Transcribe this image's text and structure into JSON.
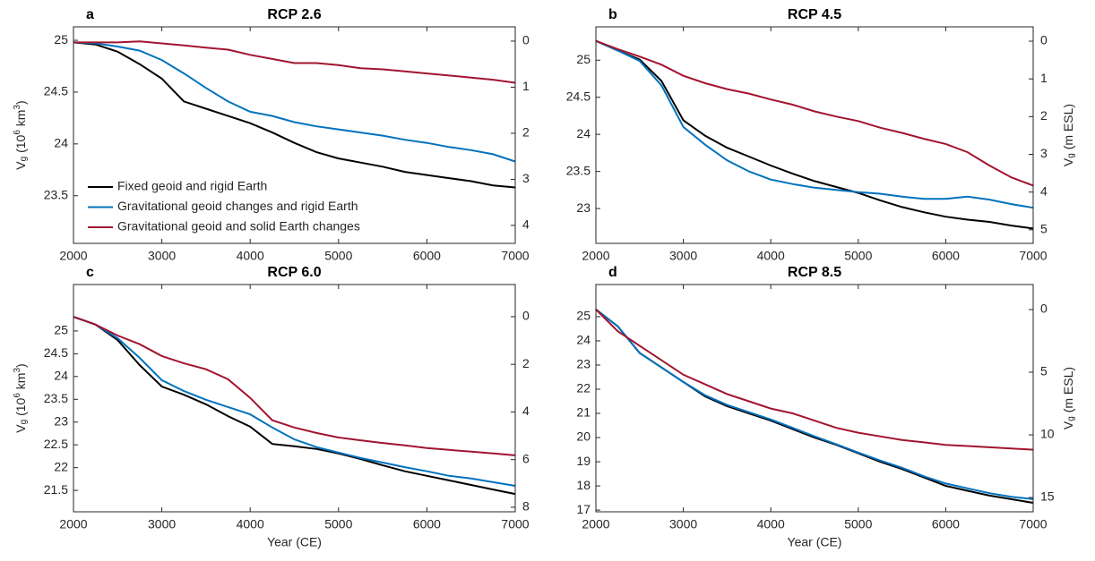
{
  "chart_data": [
    {
      "type": "line",
      "panel_label": "a",
      "title": "RCP 2.6",
      "x": [
        2000,
        2250,
        2500,
        2750,
        3000,
        3250,
        3500,
        3750,
        4000,
        4250,
        4500,
        4750,
        5000,
        5250,
        5500,
        5750,
        6000,
        6250,
        6500,
        6750,
        7000
      ],
      "xlim": [
        2000,
        7000
      ],
      "xticks": [
        2000,
        3000,
        4000,
        5000,
        6000,
        7000
      ],
      "ylim": [
        23.04,
        25.13
      ],
      "yticks": [
        23.5,
        24,
        24.5,
        25
      ],
      "y2lim": [
        4.39,
        -0.31
      ],
      "y2ticks": [
        0,
        1,
        2,
        3,
        4
      ],
      "ylabel": [
        {
          "text": "V",
          "script": "base"
        },
        {
          "text": "g",
          "script": "sub"
        },
        {
          "text": " (10",
          "script": "base"
        },
        {
          "text": "6",
          "script": "sup"
        },
        {
          "text": " km",
          "script": "base"
        },
        {
          "text": "3",
          "script": "sup"
        },
        {
          "text": ")",
          "script": "base"
        }
      ],
      "legend": "lower left",
      "series": [
        {
          "name": "Fixed geoid and rigid Earth",
          "color": "#000000",
          "values": [
            24.98,
            24.96,
            24.89,
            24.77,
            24.63,
            24.41,
            24.34,
            24.27,
            24.2,
            24.11,
            24.01,
            23.92,
            23.86,
            23.82,
            23.78,
            23.73,
            23.7,
            23.67,
            23.64,
            23.6,
            23.58
          ]
        },
        {
          "name": "Gravitational geoid changes and rigid Earth",
          "color": "#0072bd",
          "values": [
            24.98,
            24.97,
            24.94,
            24.9,
            24.81,
            24.68,
            24.54,
            24.41,
            24.31,
            24.27,
            24.21,
            24.17,
            24.14,
            24.11,
            24.08,
            24.04,
            24.01,
            23.97,
            23.94,
            23.9,
            23.83
          ]
        },
        {
          "name": "Gravitational geoid and solid Earth changes",
          "color": "#a2142f",
          "values": [
            24.98,
            24.98,
            24.98,
            24.99,
            24.97,
            24.95,
            24.93,
            24.91,
            24.86,
            24.82,
            24.78,
            24.78,
            24.76,
            24.73,
            24.72,
            24.7,
            24.68,
            24.66,
            24.64,
            24.62,
            24.59
          ]
        }
      ]
    },
    {
      "type": "line",
      "panel_label": "b",
      "title": "RCP 4.5",
      "x": [
        2000,
        2250,
        2500,
        2750,
        3000,
        3250,
        3500,
        3750,
        4000,
        4250,
        4500,
        4750,
        5000,
        5250,
        5500,
        5750,
        6000,
        6250,
        6500,
        6750,
        7000
      ],
      "xlim": [
        2000,
        7000
      ],
      "xticks": [
        2000,
        3000,
        4000,
        5000,
        6000,
        7000
      ],
      "ylim": [
        22.53,
        25.45
      ],
      "yticks": [
        23,
        23.5,
        24,
        24.5,
        25
      ],
      "y2lim": [
        5.36,
        -0.38
      ],
      "y2ticks": [
        0,
        1,
        2,
        3,
        4,
        5
      ],
      "y2label": [
        {
          "text": "V",
          "script": "base"
        },
        {
          "text": "g",
          "script": "sub"
        },
        {
          "text": " (m ESL)",
          "script": "base"
        }
      ],
      "series": [
        {
          "color": "#000000",
          "values": [
            25.26,
            25.13,
            25.01,
            24.72,
            24.19,
            23.98,
            23.82,
            23.7,
            23.58,
            23.47,
            23.37,
            23.29,
            23.21,
            23.11,
            23.02,
            22.95,
            22.89,
            22.85,
            22.82,
            22.77,
            22.73
          ]
        },
        {
          "color": "#0072bd",
          "values": [
            25.26,
            25.13,
            24.99,
            24.66,
            24.1,
            23.86,
            23.65,
            23.5,
            23.39,
            23.33,
            23.28,
            23.25,
            23.22,
            23.2,
            23.16,
            23.13,
            23.13,
            23.16,
            23.12,
            23.06,
            23.01
          ]
        },
        {
          "color": "#a2142f",
          "values": [
            25.26,
            25.15,
            25.05,
            24.94,
            24.79,
            24.69,
            24.61,
            24.55,
            24.47,
            24.4,
            24.31,
            24.24,
            24.18,
            24.09,
            24.02,
            23.94,
            23.87,
            23.76,
            23.58,
            23.42,
            23.31
          ]
        }
      ]
    },
    {
      "type": "line",
      "panel_label": "c",
      "title": "RCP 6.0",
      "x": [
        2000,
        2250,
        2500,
        2750,
        3000,
        3250,
        3500,
        3750,
        4000,
        4250,
        4500,
        4750,
        5000,
        5250,
        5500,
        5750,
        6000,
        6250,
        6500,
        6750,
        7000
      ],
      "xlim": [
        2000,
        7000
      ],
      "xticks": [
        2000,
        3000,
        4000,
        5000,
        6000,
        7000
      ],
      "ylim": [
        21.03,
        26.02
      ],
      "yticks": [
        21.5,
        22,
        22.5,
        23,
        23.5,
        24,
        24.5,
        25
      ],
      "y2lim": [
        8.19,
        -1.35
      ],
      "y2ticks": [
        0,
        2,
        4,
        6,
        8
      ],
      "ylabel": [
        {
          "text": "V",
          "script": "base"
        },
        {
          "text": "g",
          "script": "sub"
        },
        {
          "text": " (10",
          "script": "base"
        },
        {
          "text": "6",
          "script": "sup"
        },
        {
          "text": " km",
          "script": "base"
        },
        {
          "text": "3",
          "script": "sup"
        },
        {
          "text": ")",
          "script": "base"
        }
      ],
      "xlabel": "Year (CE)",
      "series": [
        {
          "color": "#000000",
          "values": [
            25.31,
            25.14,
            24.8,
            24.25,
            23.78,
            23.6,
            23.39,
            23.13,
            22.9,
            22.52,
            22.47,
            22.41,
            22.31,
            22.19,
            22.05,
            21.92,
            21.82,
            21.72,
            21.62,
            21.52,
            21.42
          ]
        },
        {
          "color": "#0072bd",
          "values": [
            25.31,
            25.14,
            24.84,
            24.41,
            23.92,
            23.68,
            23.49,
            23.33,
            23.17,
            22.88,
            22.62,
            22.45,
            22.33,
            22.21,
            22.11,
            22.01,
            21.92,
            21.82,
            21.76,
            21.68,
            21.6
          ]
        },
        {
          "color": "#a2142f",
          "values": [
            25.31,
            25.14,
            24.9,
            24.71,
            24.45,
            24.29,
            24.16,
            23.94,
            23.53,
            23.04,
            22.88,
            22.76,
            22.66,
            22.6,
            22.54,
            22.49,
            22.43,
            22.39,
            22.35,
            22.31,
            22.27
          ]
        }
      ]
    },
    {
      "type": "line",
      "panel_label": "d",
      "title": "RCP 8.5",
      "x": [
        2000,
        2250,
        2500,
        2750,
        3000,
        3250,
        3500,
        3750,
        4000,
        4250,
        4500,
        4750,
        5000,
        5250,
        5500,
        5750,
        6000,
        6250,
        6500,
        6750,
        7000
      ],
      "xlim": [
        2000,
        7000
      ],
      "xticks": [
        2000,
        3000,
        4000,
        5000,
        6000,
        7000
      ],
      "ylim": [
        16.93,
        26.33
      ],
      "yticks": [
        17,
        18,
        19,
        20,
        21,
        22,
        23,
        24,
        25
      ],
      "y2lim": [
        16.14,
        -2.0
      ],
      "y2ticks": [
        0,
        5,
        10,
        15
      ],
      "y2label": [
        {
          "text": "V",
          "script": "base"
        },
        {
          "text": "g",
          "script": "sub"
        },
        {
          "text": " (m ESL)",
          "script": "base"
        }
      ],
      "xlabel": "Year (CE)",
      "series": [
        {
          "color": "#000000",
          "values": [
            25.3,
            24.6,
            23.5,
            22.9,
            22.3,
            21.7,
            21.3,
            21.0,
            20.7,
            20.35,
            20.0,
            19.7,
            19.35,
            19.0,
            18.7,
            18.35,
            18.0,
            17.8,
            17.6,
            17.45,
            17.3
          ]
        },
        {
          "color": "#0072bd",
          "values": [
            25.3,
            24.6,
            23.5,
            22.9,
            22.3,
            21.75,
            21.35,
            21.05,
            20.75,
            20.4,
            20.05,
            19.72,
            19.38,
            19.05,
            18.75,
            18.4,
            18.1,
            17.9,
            17.7,
            17.55,
            17.45
          ]
        },
        {
          "color": "#a2142f",
          "values": [
            25.3,
            24.4,
            23.8,
            23.2,
            22.6,
            22.2,
            21.8,
            21.5,
            21.2,
            21.0,
            20.7,
            20.4,
            20.2,
            20.05,
            19.9,
            19.8,
            19.7,
            19.65,
            19.6,
            19.55,
            19.5
          ]
        }
      ]
    }
  ]
}
